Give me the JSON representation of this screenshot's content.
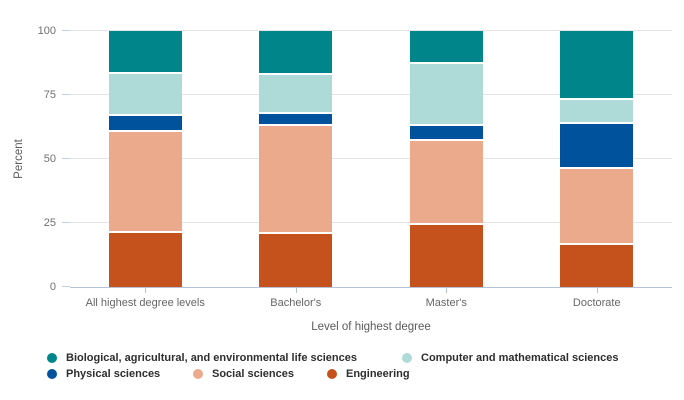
{
  "chart_data": {
    "type": "bar",
    "variant": "stacked-percent",
    "title": "",
    "xlabel": "Level of highest degree",
    "ylabel": "Percent",
    "categories": [
      "All highest degree levels",
      "Bachelor's",
      "Master's",
      "Doctorate"
    ],
    "series": [
      {
        "name": "Engineering",
        "color": "#c5511d",
        "values": [
          22,
          21.5,
          25,
          17
        ]
      },
      {
        "name": "Social sciences",
        "color": "#ecaa8d",
        "values": [
          39.5,
          42,
          33,
          30
        ]
      },
      {
        "name": "Physical sciences",
        "color": "#00529c",
        "values": [
          6,
          5,
          5.5,
          17.5
        ]
      },
      {
        "name": "Computer and mathematical sciences",
        "color": "#aedbd7",
        "values": [
          16.5,
          15,
          24.5,
          9.5
        ]
      },
      {
        "name": "Biological, agricultural, and environmental life sciences",
        "color": "#00858a",
        "values": [
          16,
          16.5,
          12,
          26
        ]
      }
    ],
    "stack_order": "first series at bottom",
    "ylim": [
      0,
      100
    ],
    "yticks": [
      0,
      25,
      50,
      75,
      100
    ],
    "ytick_labels": [
      "0",
      "25",
      "50",
      "75",
      "100"
    ],
    "grid": true,
    "legend_position": "bottom",
    "colors": {
      "gridline": "#e4e4e4",
      "axis_line": "#b4c2d9",
      "tick_label": "#707070",
      "axis_title": "#5a5a5a",
      "legend_text": "#2e2e2e",
      "background": "#ffffff"
    }
  },
  "legend": {
    "rows": [
      [
        4,
        3
      ],
      [
        2,
        1,
        0
      ]
    ],
    "row_tops": [
      351,
      367
    ],
    "item_lefts": [
      [
        47,
        402
      ],
      [
        47,
        193,
        327
      ]
    ]
  }
}
